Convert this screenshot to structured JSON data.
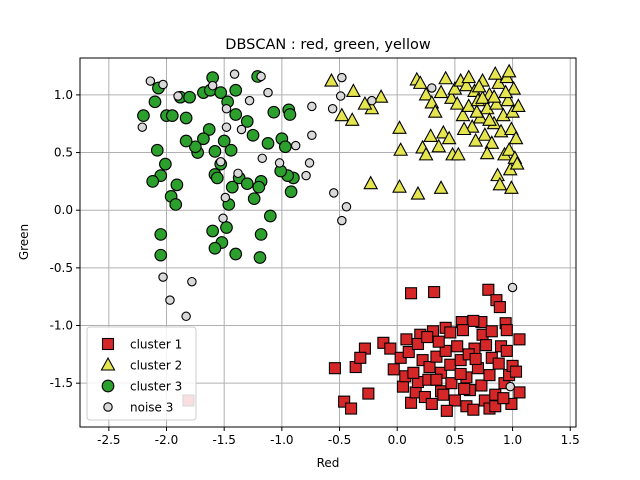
{
  "chart_data": {
    "type": "scatter",
    "title": "DBSCAN : red, green, yellow",
    "xlabel": "Red",
    "ylabel": "Green",
    "xlim": [
      -2.75,
      1.55
    ],
    "ylim": [
      -1.88,
      1.32
    ],
    "xticks": [
      "-2.5",
      "-2.0",
      "-1.5",
      "-1.0",
      "-0.5",
      "0.0",
      "0.5",
      "1.0",
      "1.5"
    ],
    "yticks": [
      "-1.5",
      "-1.0",
      "-0.5",
      "0.0",
      "0.5",
      "1.0"
    ],
    "grid": true,
    "legend_position": "lower-left",
    "series": [
      {
        "name": "cluster 1",
        "marker": "square",
        "color": "#d62728",
        "points": [
          [
            0.12,
            -0.72
          ],
          [
            0.32,
            -0.71
          ],
          [
            0.79,
            -0.69
          ],
          [
            -1.81,
            -1.65
          ],
          [
            -0.46,
            -1.66
          ],
          [
            -0.4,
            -1.72
          ],
          [
            -0.54,
            -1.37
          ],
          [
            -0.36,
            -1.36
          ],
          [
            -0.28,
            -1.2
          ],
          [
            -0.32,
            -1.28
          ],
          [
            -0.12,
            -1.15
          ],
          [
            -0.06,
            -1.2
          ],
          [
            -0.03,
            -1.38
          ],
          [
            -0.25,
            -1.59
          ],
          [
            0.05,
            -1.53
          ],
          [
            0.07,
            -1.44
          ],
          [
            0.12,
            -1.67
          ],
          [
            0.16,
            -1.58
          ],
          [
            0.22,
            -1.3
          ],
          [
            0.28,
            -1.36
          ],
          [
            0.34,
            -1.27
          ],
          [
            0.38,
            -1.41
          ],
          [
            0.42,
            -1.22
          ],
          [
            0.46,
            -1.34
          ],
          [
            0.52,
            -1.18
          ],
          [
            0.55,
            -1.3
          ],
          [
            0.6,
            -1.45
          ],
          [
            0.63,
            -1.56
          ],
          [
            0.67,
            -1.2
          ],
          [
            0.7,
            -1.37
          ],
          [
            0.73,
            -1.52
          ],
          [
            0.76,
            -1.65
          ],
          [
            0.8,
            -1.43
          ],
          [
            0.82,
            -1.28
          ],
          [
            0.85,
            -1.6
          ],
          [
            0.88,
            -1.33
          ],
          [
            0.9,
            -1.18
          ],
          [
            0.93,
            -1.5
          ],
          [
            0.95,
            -1.22
          ],
          [
            0.97,
            -1.43
          ],
          [
            1.0,
            -1.35
          ],
          [
            1.03,
            -1.4
          ],
          [
            1.06,
            -1.58
          ],
          [
            1.06,
            -1.12
          ],
          [
            0.86,
            -0.78
          ],
          [
            0.89,
            -0.84
          ],
          [
            0.73,
            -0.97
          ],
          [
            0.66,
            -0.96
          ],
          [
            0.56,
            -0.97
          ],
          [
            0.42,
            -1.02
          ],
          [
            0.31,
            -1.05
          ],
          [
            0.2,
            -1.08
          ],
          [
            0.08,
            -1.12
          ],
          [
            0.03,
            -1.28
          ],
          [
            0.1,
            -1.23
          ],
          [
            0.18,
            -1.16
          ],
          [
            0.26,
            -1.1
          ],
          [
            0.36,
            -1.14
          ],
          [
            0.46,
            -1.06
          ],
          [
            0.57,
            -1.04
          ],
          [
            0.62,
            -1.25
          ],
          [
            0.74,
            -1.08
          ],
          [
            0.82,
            -1.05
          ],
          [
            0.94,
            -0.98
          ],
          [
            0.95,
            -1.04
          ],
          [
            0.99,
            -1.68
          ],
          [
            0.5,
            -1.65
          ],
          [
            0.43,
            -1.74
          ],
          [
            0.6,
            -1.7
          ],
          [
            0.66,
            -1.73
          ],
          [
            0.8,
            -1.72
          ],
          [
            0.85,
            -1.7
          ],
          [
            0.24,
            -1.62
          ],
          [
            0.3,
            -1.68
          ],
          [
            0.38,
            -1.57
          ],
          [
            0.47,
            -1.5
          ],
          [
            0.55,
            -1.42
          ],
          [
            0.68,
            -1.29
          ],
          [
            0.18,
            -1.49
          ],
          [
            0.27,
            -1.47
          ],
          [
            0.14,
            -1.41
          ],
          [
            0.34,
            -1.47
          ],
          [
            0.58,
            -1.55
          ],
          [
            0.77,
            -1.17
          ],
          [
            0.92,
            -1.63
          ],
          [
            0.4,
            -1.6
          ]
        ]
      },
      {
        "name": "cluster 2",
        "marker": "triangle",
        "color": "#e5e550",
        "points": [
          [
            -0.57,
            1.12
          ],
          [
            -0.38,
            1.03
          ],
          [
            -0.14,
            0.98
          ],
          [
            -0.22,
            0.88
          ],
          [
            -0.28,
            0.92
          ],
          [
            -0.48,
            0.82
          ],
          [
            -0.39,
            0.78
          ],
          [
            -0.23,
            0.23
          ],
          [
            0.02,
            0.2
          ],
          [
            0.18,
            0.14
          ],
          [
            0.38,
            0.19
          ],
          [
            0.02,
            0.71
          ],
          [
            0.03,
            0.52
          ],
          [
            0.22,
            0.54
          ],
          [
            0.25,
            0.48
          ],
          [
            0.29,
            0.64
          ],
          [
            0.36,
            0.55
          ],
          [
            0.4,
            0.67
          ],
          [
            0.48,
            0.48
          ],
          [
            0.53,
            0.48
          ],
          [
            0.17,
            1.13
          ],
          [
            0.2,
            1.1
          ],
          [
            0.25,
            1.0
          ],
          [
            0.3,
            0.93
          ],
          [
            0.33,
            0.85
          ],
          [
            0.38,
            1.02
          ],
          [
            0.42,
            1.14
          ],
          [
            0.47,
            0.97
          ],
          [
            0.5,
            1.05
          ],
          [
            0.52,
            0.92
          ],
          [
            0.55,
            1.12
          ],
          [
            0.57,
            0.82
          ],
          [
            0.6,
            1.08
          ],
          [
            0.62,
            0.9
          ],
          [
            0.65,
            0.72
          ],
          [
            0.67,
            1.03
          ],
          [
            0.7,
            0.95
          ],
          [
            0.72,
            0.8
          ],
          [
            0.74,
            1.12
          ],
          [
            0.76,
            0.65
          ],
          [
            0.78,
            0.88
          ],
          [
            0.8,
            1.0
          ],
          [
            0.82,
            0.58
          ],
          [
            0.84,
            0.75
          ],
          [
            0.86,
            0.92
          ],
          [
            0.88,
            1.1
          ],
          [
            0.9,
            0.68
          ],
          [
            0.92,
            0.82
          ],
          [
            0.93,
            0.48
          ],
          [
            0.95,
            1.15
          ],
          [
            0.96,
            0.95
          ],
          [
            0.97,
            0.52
          ],
          [
            0.98,
            0.35
          ],
          [
            0.99,
            0.7
          ],
          [
            1.0,
            0.85
          ],
          [
            1.01,
            1.05
          ],
          [
            1.02,
            0.45
          ],
          [
            1.03,
            0.62
          ],
          [
            1.04,
            0.4
          ],
          [
            1.05,
            0.9
          ],
          [
            0.87,
            0.3
          ],
          [
            0.89,
            0.22
          ],
          [
            0.99,
            0.19
          ],
          [
            0.78,
            0.49
          ],
          [
            0.68,
            0.6
          ],
          [
            0.58,
            0.7
          ],
          [
            0.45,
            0.62
          ],
          [
            0.62,
            1.15
          ],
          [
            0.85,
            1.18
          ],
          [
            0.97,
            1.2
          ],
          [
            0.74,
            0.97
          ],
          [
            0.69,
            0.85
          ],
          [
            0.84,
            0.98
          ],
          [
            0.94,
            1.02
          ],
          [
            0.8,
            0.78
          ],
          [
            0.71,
            1.07
          ]
        ]
      },
      {
        "name": "cluster 3",
        "marker": "circle",
        "color": "#2ca02c",
        "points": [
          [
            -2.07,
            1.06
          ],
          [
            -2.1,
            0.94
          ],
          [
            -2.0,
            0.82
          ],
          [
            -1.88,
            0.98
          ],
          [
            -1.8,
            0.98
          ],
          [
            -1.68,
            1.02
          ],
          [
            -1.6,
            1.15
          ],
          [
            -1.62,
            1.04
          ],
          [
            -1.53,
            1.02
          ],
          [
            -1.4,
            1.04
          ],
          [
            -1.21,
            1.16
          ],
          [
            -1.47,
            0.94
          ],
          [
            -1.4,
            0.83
          ],
          [
            -1.3,
            0.77
          ],
          [
            -1.25,
            0.65
          ],
          [
            -1.07,
            0.85
          ],
          [
            -0.94,
            0.87
          ],
          [
            -0.93,
            0.83
          ],
          [
            -1.0,
            0.62
          ],
          [
            -0.97,
            0.55
          ],
          [
            -1.63,
            0.7
          ],
          [
            -1.68,
            0.62
          ],
          [
            -1.73,
            0.5
          ],
          [
            -1.58,
            0.51
          ],
          [
            -1.5,
            0.6
          ],
          [
            -1.75,
            0.55
          ],
          [
            -1.83,
            0.6
          ],
          [
            -2.08,
            0.52
          ],
          [
            -2.01,
            0.4
          ],
          [
            -2.05,
            0.3
          ],
          [
            -2.12,
            0.25
          ],
          [
            -1.91,
            0.22
          ],
          [
            -1.96,
            0.12
          ],
          [
            -1.92,
            0.05
          ],
          [
            -1.58,
            0.31
          ],
          [
            -1.56,
            0.28
          ],
          [
            -1.46,
            0.05
          ],
          [
            -1.48,
            -0.15
          ],
          [
            -1.52,
            -0.28
          ],
          [
            -1.43,
            0.2
          ],
          [
            -1.37,
            0.28
          ],
          [
            -1.3,
            0.23
          ],
          [
            -1.24,
            0.1
          ],
          [
            -1.12,
            0.58
          ],
          [
            -1.18,
            0.25
          ],
          [
            -1.2,
            0.2
          ],
          [
            -1.1,
            -0.05
          ],
          [
            -1.18,
            -0.21
          ],
          [
            -1.19,
            -0.41
          ],
          [
            -1.4,
            -0.38
          ],
          [
            -1.6,
            -0.18
          ],
          [
            -1.58,
            -0.33
          ],
          [
            -2.05,
            -0.21
          ],
          [
            -2.05,
            -0.39
          ],
          [
            -0.9,
            0.28
          ],
          [
            -0.92,
            0.16
          ],
          [
            -0.95,
            0.3
          ],
          [
            -1.95,
            0.82
          ],
          [
            -2.2,
            0.82
          ],
          [
            -1.83,
            0.8
          ],
          [
            -1.44,
            0.52
          ],
          [
            -1.53,
            0.4
          ],
          [
            -1.01,
            0.34
          ]
        ]
      },
      {
        "name": "noise 3",
        "marker": "circle-small",
        "color": "#d9d9d9",
        "points": [
          [
            -2.14,
            1.12
          ],
          [
            -2.03,
            1.09
          ],
          [
            -1.9,
            0.99
          ],
          [
            -1.6,
            1.08
          ],
          [
            -1.41,
            1.18
          ],
          [
            -1.18,
            1.16
          ],
          [
            -1.12,
            1.02
          ],
          [
            -1.28,
            0.95
          ],
          [
            -1.48,
            0.88
          ],
          [
            -1.48,
            0.72
          ],
          [
            -1.35,
            0.7
          ],
          [
            -2.21,
            0.72
          ],
          [
            -1.17,
            0.45
          ],
          [
            -1.02,
            0.41
          ],
          [
            -1.53,
            0.42
          ],
          [
            -1.38,
            0.32
          ],
          [
            -0.79,
            0.3
          ],
          [
            -0.88,
            0.56
          ],
          [
            -0.74,
            0.65
          ],
          [
            -0.76,
            0.41
          ],
          [
            -0.55,
            0.15
          ],
          [
            -0.44,
            0.03
          ],
          [
            -0.48,
            -0.09
          ],
          [
            -0.49,
            0.99
          ],
          [
            -0.74,
            0.9
          ],
          [
            -0.48,
            1.15
          ],
          [
            -0.22,
            0.95
          ],
          [
            -0.56,
            0.88
          ],
          [
            -1.49,
            0.11
          ],
          [
            -1.78,
            -0.62
          ],
          [
            -2.03,
            -0.58
          ],
          [
            -1.97,
            -0.78
          ],
          [
            -1.83,
            -0.92
          ],
          [
            1.0,
            -0.67
          ],
          [
            0.98,
            -1.53
          ],
          [
            0.3,
            1.06
          ],
          [
            -1.51,
            -0.07
          ]
        ]
      }
    ]
  }
}
